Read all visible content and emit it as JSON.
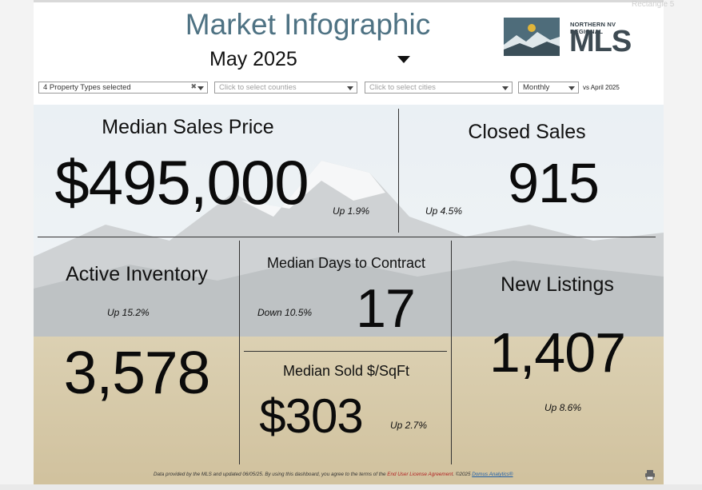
{
  "header": {
    "title": "Market Infographic",
    "month": "May 2025",
    "logo": {
      "line1": "NORTHERN NV REGIONAL",
      "line2": "MLS"
    }
  },
  "filters": {
    "property_types": "4 Property Types selected",
    "counties_placeholder": "Click to select counties",
    "cities_placeholder": "Click to select cities",
    "period": "Monthly",
    "comparison": "vs April 2025"
  },
  "kpis": {
    "median_sales_price": {
      "title": "Median Sales Price",
      "value": "$495,000",
      "change": "Up 1.9%"
    },
    "closed_sales": {
      "title": "Closed Sales",
      "value": "915",
      "change": "Up 4.5%"
    },
    "active_inventory": {
      "title": "Active Inventory",
      "value": "3,578",
      "change": "Up 15.2%"
    },
    "median_days_to_contract": {
      "title": "Median Days to Contract",
      "value": "17",
      "change": "Down 10.5%"
    },
    "median_sold_per_sqft": {
      "title": "Median Sold $/SqFt",
      "value": "$303",
      "change": "Up 2.7%"
    },
    "new_listings": {
      "title": "New Listings",
      "value": "1,407",
      "change": "Up 8.6%"
    }
  },
  "footer": {
    "text1": "Data provided by the MLS and updated 06/05/25.  By using this dashboard, you agree to the terms of the ",
    "eula": "End User License Agreement",
    "text2": ".  ©2025 ",
    "brand": "Domus Analytics®"
  },
  "ghost_tab": "Rectangle 5",
  "icons": {
    "print": "printer-icon",
    "dropdown": "chevron-down-icon",
    "clear": "clear-icon"
  },
  "colors": {
    "title": "#4e7283",
    "accent_red": "#b22222",
    "link_blue": "#1f5fa8"
  }
}
